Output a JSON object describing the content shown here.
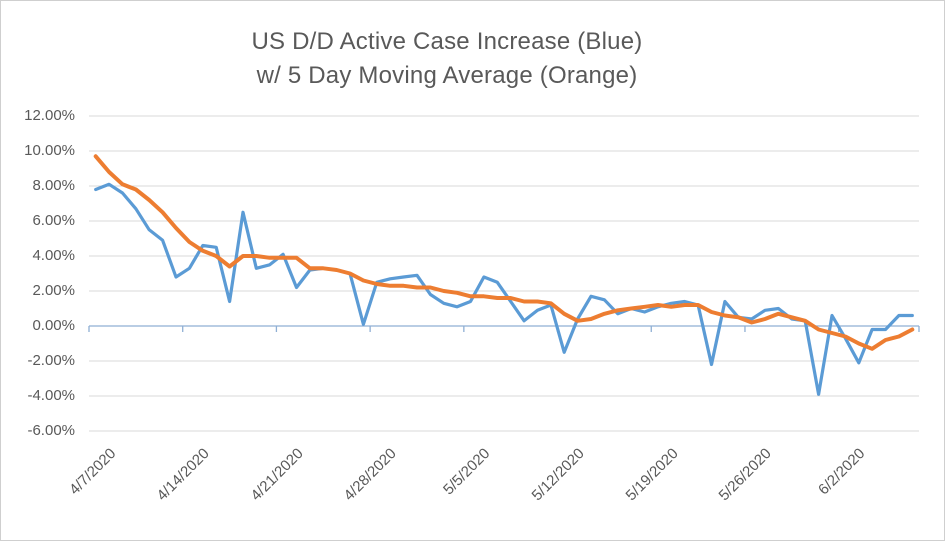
{
  "title": {
    "line1": "US D/D Active Case Increase (Blue)",
    "line2": "w/ 5 Day Moving Average (Orange)"
  },
  "colors": {
    "blue_series": "#5B9BD5",
    "orange_series": "#ED7D31",
    "gridline": "#D9D9D9",
    "axis_line": "#8FAFD4",
    "label_text": "#595959",
    "border": "#CFCFCF",
    "background": "#FFFFFF"
  },
  "chart_data": {
    "type": "line",
    "title": "US D/D Active Case Increase (Blue) w/ 5 Day Moving Average (Orange)",
    "grid": true,
    "legend_position": "none",
    "ylim": [
      -6,
      12
    ],
    "y_ticks": [
      {
        "label": "12.00%",
        "value": 12
      },
      {
        "label": "10.00%",
        "value": 10
      },
      {
        "label": "8.00%",
        "value": 8
      },
      {
        "label": "6.00%",
        "value": 6
      },
      {
        "label": "4.00%",
        "value": 4
      },
      {
        "label": "2.00%",
        "value": 2
      },
      {
        "label": "0.00%",
        "value": 0
      },
      {
        "label": "-2.00%",
        "value": -2
      },
      {
        "label": "-4.00%",
        "value": -4
      },
      {
        "label": "-6.00%",
        "value": -6
      }
    ],
    "x_tick_labels": [
      "4/7/2020",
      "4/14/2020",
      "4/21/2020",
      "4/28/2020",
      "5/5/2020",
      "5/12/2020",
      "5/19/2020",
      "5/26/2020",
      "6/2/2020"
    ],
    "x": [
      "4/7/2020",
      "4/8/2020",
      "4/9/2020",
      "4/10/2020",
      "4/11/2020",
      "4/12/2020",
      "4/13/2020",
      "4/14/2020",
      "4/15/2020",
      "4/16/2020",
      "4/17/2020",
      "4/18/2020",
      "4/19/2020",
      "4/20/2020",
      "4/21/2020",
      "4/22/2020",
      "4/23/2020",
      "4/24/2020",
      "4/25/2020",
      "4/26/2020",
      "4/27/2020",
      "4/28/2020",
      "4/29/2020",
      "4/30/2020",
      "5/1/2020",
      "5/2/2020",
      "5/3/2020",
      "5/4/2020",
      "5/5/2020",
      "5/6/2020",
      "5/7/2020",
      "5/8/2020",
      "5/9/2020",
      "5/10/2020",
      "5/11/2020",
      "5/12/2020",
      "5/13/2020",
      "5/14/2020",
      "5/15/2020",
      "5/16/2020",
      "5/17/2020",
      "5/18/2020",
      "5/19/2020",
      "5/20/2020",
      "5/21/2020",
      "5/22/2020",
      "5/23/2020",
      "5/24/2020",
      "5/25/2020",
      "5/26/2020",
      "5/27/2020",
      "5/28/2020",
      "5/29/2020",
      "5/30/2020",
      "5/31/2020",
      "6/1/2020",
      "6/2/2020",
      "6/3/2020",
      "6/4/2020",
      "6/5/2020",
      "6/6/2020",
      "6/7/2020"
    ],
    "series": [
      {
        "name": "US D/D Active Case Increase",
        "color_key": "blue_series",
        "unit": "percent",
        "values": [
          7.8,
          8.1,
          7.6,
          6.7,
          5.5,
          4.9,
          2.8,
          3.3,
          4.6,
          4.5,
          1.4,
          6.5,
          3.3,
          3.5,
          4.1,
          2.2,
          3.2,
          3.3,
          3.2,
          3.0,
          0.1,
          2.5,
          2.7,
          2.8,
          2.9,
          1.8,
          1.3,
          1.1,
          1.4,
          2.8,
          2.5,
          1.4,
          0.3,
          0.9,
          1.2,
          -1.5,
          0.4,
          1.7,
          1.5,
          0.7,
          1.0,
          0.8,
          1.1,
          1.3,
          1.4,
          1.2,
          -2.2,
          1.4,
          0.5,
          0.4,
          0.9,
          1.0,
          0.4,
          0.3,
          -3.9,
          0.6,
          -0.7,
          -2.1,
          -0.2,
          -0.2,
          0.6,
          0.6
        ]
      },
      {
        "name": "5 Day Moving Average",
        "color_key": "orange_series",
        "unit": "percent",
        "values": [
          9.7,
          8.8,
          8.1,
          7.8,
          7.2,
          6.5,
          5.6,
          4.8,
          4.3,
          4.0,
          3.4,
          4.0,
          4.0,
          3.9,
          3.9,
          3.9,
          3.3,
          3.3,
          3.2,
          3.0,
          2.6,
          2.4,
          2.3,
          2.3,
          2.2,
          2.2,
          2.0,
          1.9,
          1.7,
          1.7,
          1.6,
          1.6,
          1.4,
          1.4,
          1.3,
          0.7,
          0.3,
          0.4,
          0.7,
          0.9,
          1.0,
          1.1,
          1.2,
          1.1,
          1.2,
          1.2,
          0.8,
          0.6,
          0.5,
          0.2,
          0.4,
          0.7,
          0.5,
          0.3,
          -0.2,
          -0.4,
          -0.6,
          -1.0,
          -1.3,
          -0.8,
          -0.6,
          -0.2
        ]
      }
    ]
  }
}
